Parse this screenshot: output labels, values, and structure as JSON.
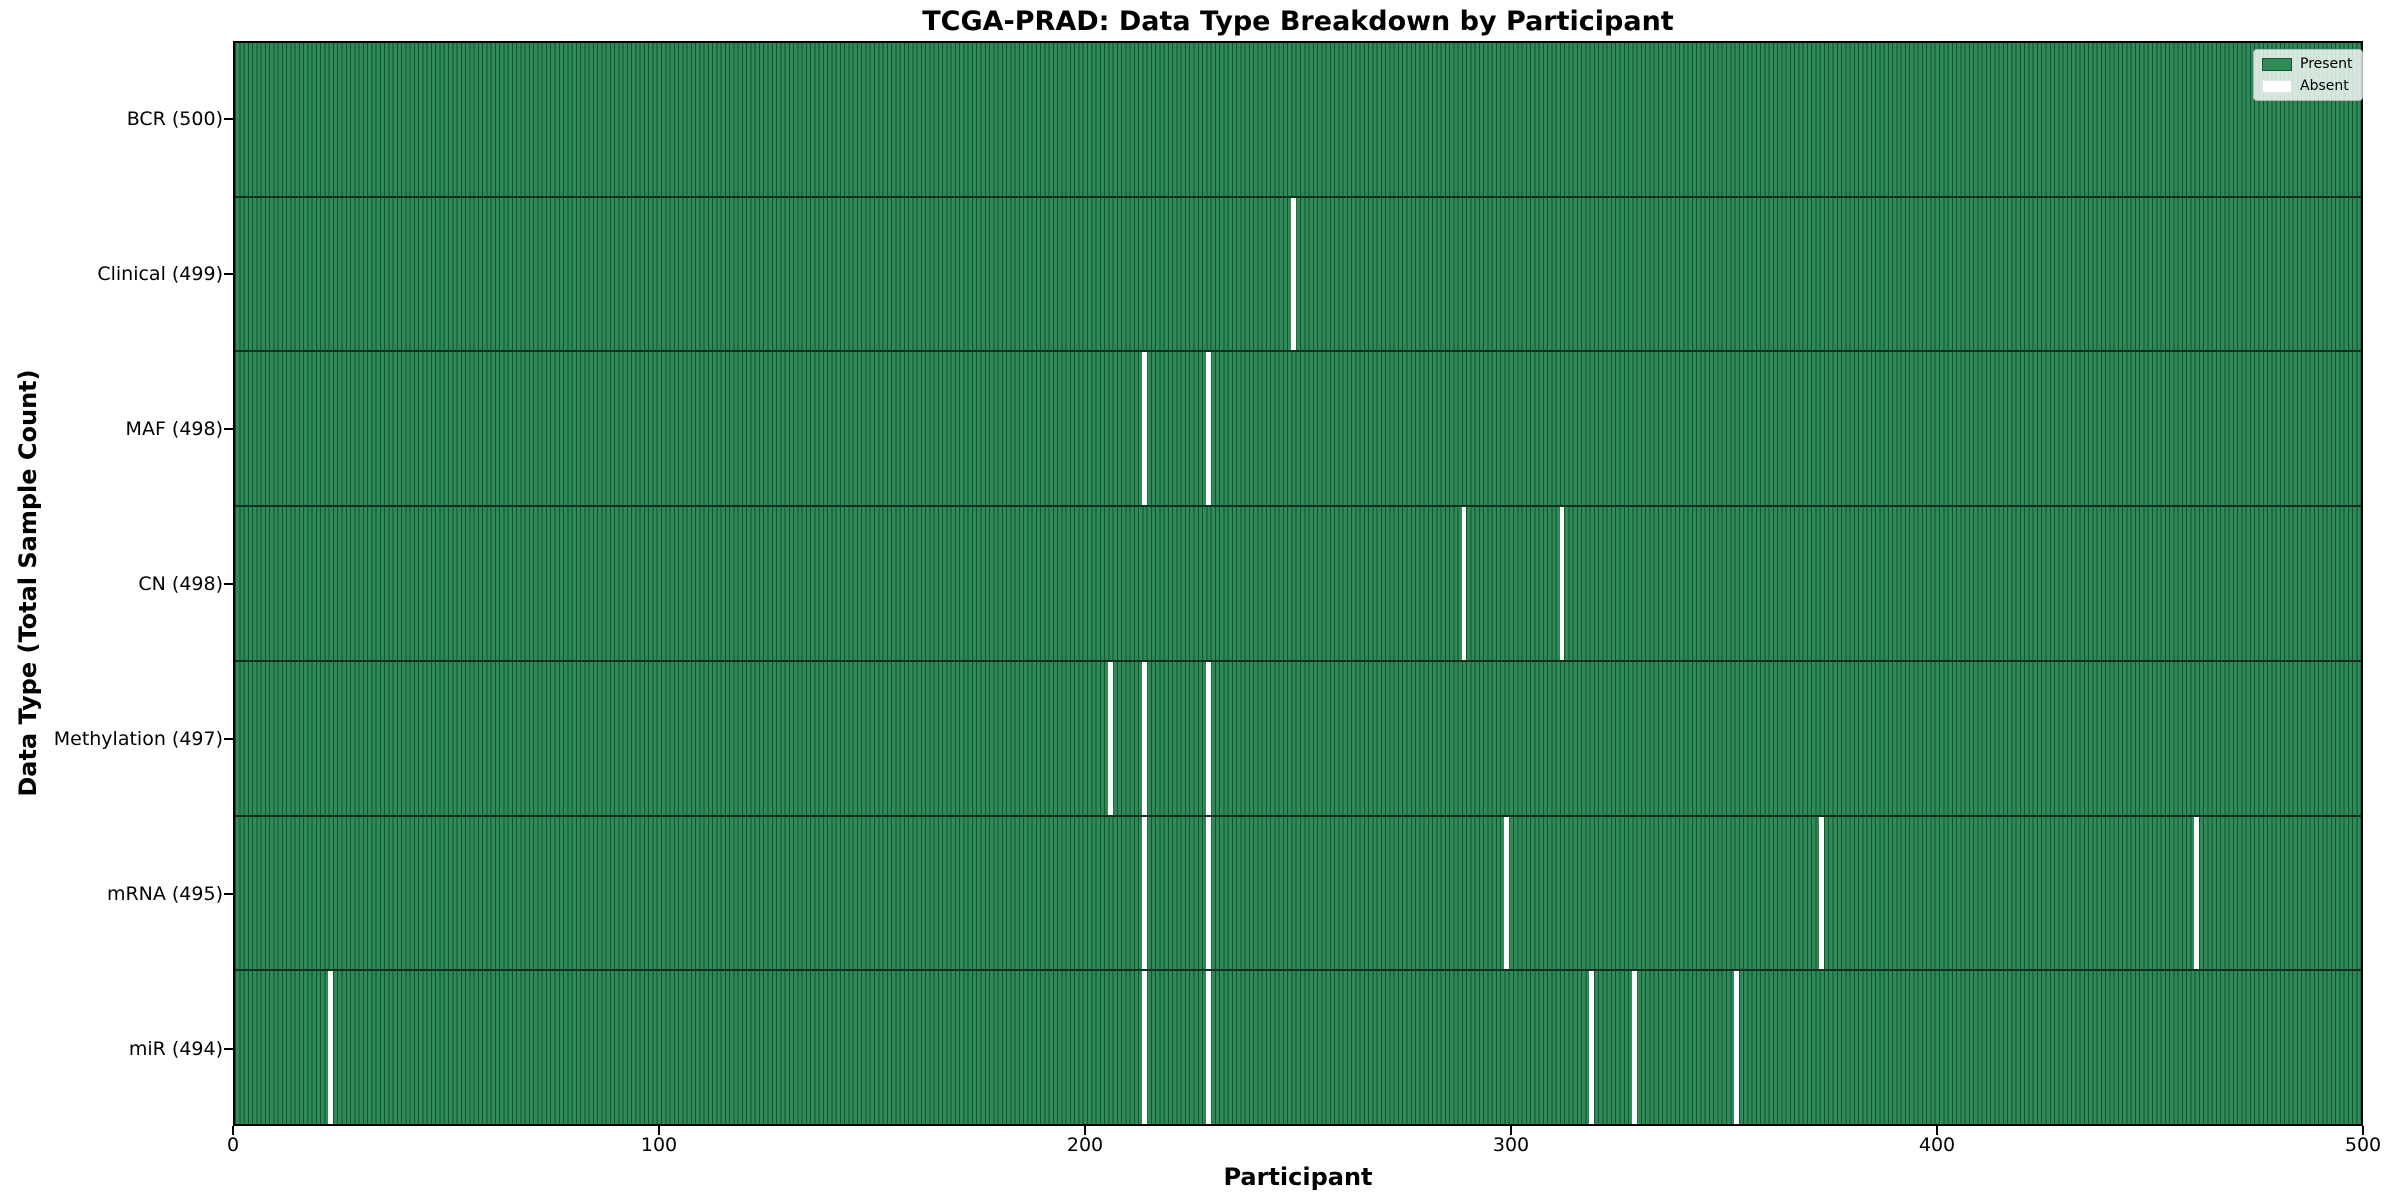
{
  "title": "TCGA-PRAD: Data Type Breakdown by Participant",
  "xlabel": "Participant",
  "ylabel": "Data Type (Total Sample Count)",
  "legend": {
    "present_label": "Present",
    "absent_label": "Absent",
    "position": "upper right"
  },
  "colors": {
    "present": "#2e8b57",
    "cell_edge": "#175032",
    "absent": "#ffffff",
    "row_divider": "#16301f",
    "axis": "#000000",
    "legend_background": "rgba(255,255,255,0.8)"
  },
  "x_axis": {
    "min": 0,
    "max": 500,
    "ticks": [
      0,
      100,
      200,
      300,
      400,
      500
    ]
  },
  "chart_data": {
    "type": "heatmap",
    "title": "TCGA-PRAD: Data Type Breakdown by Participant",
    "xlabel": "Participant",
    "ylabel": "Data Type (Total Sample Count)",
    "x_range": [
      0,
      500
    ],
    "n_participants": 500,
    "grid": false,
    "legend_entries": [
      "Present",
      "Absent"
    ],
    "legend_position": "upper right",
    "rows": [
      {
        "label": "BCR (500)",
        "data_type": "BCR",
        "total": 500,
        "absent_participants": []
      },
      {
        "label": "Clinical (499)",
        "data_type": "Clinical",
        "total": 499,
        "absent_participants": [
          248
        ]
      },
      {
        "label": "MAF (498)",
        "data_type": "MAF",
        "total": 498,
        "absent_participants": [
          213,
          228
        ]
      },
      {
        "label": "CN (498)",
        "data_type": "CN",
        "total": 498,
        "absent_participants": [
          288,
          311
        ]
      },
      {
        "label": "Methylation (497)",
        "data_type": "Methylation",
        "total": 497,
        "absent_participants": [
          205,
          213,
          228
        ]
      },
      {
        "label": "mRNA (495)",
        "data_type": "mRNA",
        "total": 495,
        "absent_participants": [
          213,
          228,
          298,
          372,
          460
        ]
      },
      {
        "label": "miR (494)",
        "data_type": "miR",
        "total": 494,
        "absent_participants": [
          22,
          213,
          228,
          318,
          328,
          352
        ]
      }
    ]
  }
}
